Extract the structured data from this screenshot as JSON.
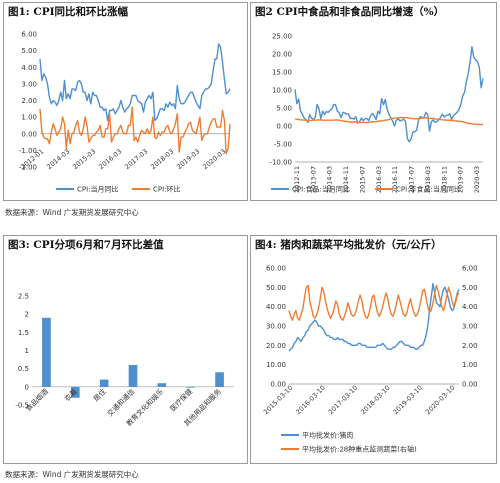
{
  "panels": [
    {
      "title": "图1: CPI同比和环比涨幅"
    },
    {
      "title": "图2 CPI中食品和非食品同比增速（%）"
    },
    {
      "title": "图3: CPI分项6月和7月环比差值"
    },
    {
      "title": "图4: 猪肉和蔬菜平均批发价（元/公斤）"
    }
  ],
  "sources": [
    "数据来源：Wind  广发期货发展研究中心",
    "数据来源：Wind  广发期货发展研究中心"
  ],
  "colors": {
    "blue": "#4e8fcd",
    "orange": "#ef7d31",
    "gray": "#bfbfbf"
  },
  "chart_data": [
    {
      "type": "line",
      "ylim": [
        -2,
        6
      ],
      "y_ticks": [
        "6.00",
        "5.00",
        "4.00",
        "3.00",
        "2.00",
        "1.00",
        "0.00",
        "-1.00",
        "-2.00"
      ],
      "x_ticks": [
        "2012-01",
        "2014-03",
        "2015-03",
        "2016-03",
        "2017-03",
        "2018-03",
        "2019-03",
        "2020-03"
      ],
      "series": [
        {
          "name": "CPI:当月同比",
          "color": "#4e8fcd",
          "values": [
            4.5,
            3.2,
            3.6,
            3.4,
            3.0,
            2.2,
            1.8,
            2.0,
            1.9,
            1.7,
            2.0,
            2.5,
            2.0,
            3.2,
            2.1,
            2.4,
            2.1,
            2.7,
            2.7,
            2.6,
            3.1,
            3.2,
            3.0,
            2.5,
            2.5,
            2.0,
            2.4,
            1.8,
            2.5,
            2.3,
            2.3,
            2.0,
            1.6,
            1.6,
            1.4,
            1.5,
            0.8,
            1.4,
            1.4,
            1.5,
            1.2,
            1.4,
            1.6,
            2.0,
            1.6,
            1.3,
            1.5,
            1.6,
            1.8,
            2.3,
            2.3,
            2.3,
            2.0,
            1.9,
            1.8,
            1.3,
            1.9,
            2.1,
            2.3,
            2.1,
            2.5,
            0.8,
            0.9,
            1.2,
            1.5,
            1.5,
            1.4,
            1.8,
            1.6,
            1.9,
            1.7,
            1.8,
            1.5,
            2.9,
            2.1,
            1.8,
            1.8,
            1.9,
            2.1,
            2.3,
            2.5,
            2.5,
            2.2,
            1.9,
            1.7,
            1.5,
            2.3,
            2.5,
            2.7,
            2.7,
            2.8,
            3.0,
            3.8,
            4.5,
            4.5,
            5.4,
            5.2,
            4.3,
            3.3,
            2.4,
            2.5,
            2.7
          ]
        },
        {
          "name": "CPI:环比",
          "color": "#ef7d31",
          "values": [
            1.5,
            0.1,
            -0.2,
            -0.3,
            -0.3,
            -0.6,
            0.1,
            0.6,
            0.3,
            -0.1,
            0.1,
            0.3,
            1.0,
            0.6,
            -0.9,
            0.2,
            -0.6,
            0.0,
            0.1,
            0.5,
            0.8,
            0.1,
            -0.1,
            0.3,
            1.0,
            0.5,
            -0.5,
            -0.3,
            -0.1,
            -0.1,
            0.1,
            0.2,
            0.5,
            -0.2,
            -0.2,
            0.3,
            0.3,
            1.2,
            -0.5,
            -0.2,
            0.0,
            0.0,
            0.3,
            0.5,
            0.1,
            0.0,
            0.0,
            0.5,
            0.5,
            1.6,
            -0.4,
            -0.2,
            -0.5,
            -0.1,
            0.2,
            0.1,
            0.0,
            0.3,
            0.0,
            0.2,
            1.0,
            -0.2,
            -0.3,
            0.1,
            -0.1,
            0.1,
            0.1,
            0.4,
            0.5,
            0.1,
            0.0,
            0.3,
            0.6,
            1.2,
            -1.1,
            -0.2,
            -0.2,
            0.1,
            0.3,
            0.6,
            0.7,
            0.2,
            0.1,
            0.0,
            0.5,
            1.0,
            -0.4,
            -0.1,
            0.0,
            0.0,
            0.4,
            0.7,
            0.9,
            0.9,
            0.4,
            0.4,
            0.4,
            1.4,
            0.8,
            -1.2,
            -0.9,
            0.6
          ]
        }
      ]
    },
    {
      "type": "line",
      "ylim": [
        -10,
        25
      ],
      "y_ticks": [
        "25.00",
        "20.00",
        "15.00",
        "10.00",
        "5.00",
        "0.00",
        "-5.00",
        "-10.00"
      ],
      "x_ticks": [
        "2012-11",
        "2013-07",
        "2014-03",
        "2014-11",
        "2015-07",
        "2016-03",
        "2016-11",
        "2017-07",
        "2018-03",
        "2018-11",
        "2019-07",
        "2020-03"
      ],
      "series": [
        {
          "name": "CPI:食品:当月同比",
          "color": "#4e8fcd",
          "values": [
            10.2,
            6.2,
            7.5,
            4.2,
            3.2,
            2.2,
            1.7,
            1.0,
            3.2,
            2.1,
            1.9,
            2.4,
            6.0,
            4.8,
            2.0,
            4.1,
            3.2,
            4.0,
            3.8,
            4.3,
            4.8,
            6.0,
            5.9,
            4.1,
            3.7,
            2.3,
            3.8,
            3.6,
            3.3,
            3.3,
            2.1,
            2.2,
            1.9,
            2.6,
            0.8,
            1.1,
            2.2,
            1.5,
            2.0,
            2.1,
            1.5,
            2.9,
            3.5,
            2.8,
            1.8,
            4.1,
            3.4,
            7.6,
            5.9,
            7.4,
            4.6,
            3.2,
            2.3,
            1.3,
            0.0,
            1.6,
            2.0,
            1.4,
            1.6,
            1.9,
            1.2,
            -3.5,
            -4.4,
            -3.5,
            -1.6,
            -1.6,
            -1.2,
            1.6,
            2.6,
            2.3,
            2.4,
            3.8,
            3.1,
            -1.4,
            1.2,
            1.7,
            1.0,
            1.2,
            1.7,
            2.4,
            3.3,
            2.5,
            2.9,
            3.0,
            3.4,
            1.8,
            2.9,
            3.4,
            3.8,
            4.6,
            6.1,
            8.4,
            9.4,
            12.4,
            14.7,
            17.8,
            22.0,
            19.1,
            18.3,
            17.9,
            16.3,
            10.6,
            13.2
          ]
        },
        {
          "name": "CPI:非食品:当月同比",
          "color": "#ef7d31",
          "values": [
            2.0,
            1.9,
            1.8,
            1.7,
            1.7,
            1.6,
            1.6,
            1.5,
            1.5,
            1.5,
            1.6,
            1.6,
            1.7,
            1.7,
            1.7,
            1.6,
            1.6,
            1.6,
            1.6,
            1.6,
            1.6,
            1.6,
            1.7,
            1.7,
            1.6,
            1.5,
            1.4,
            1.3,
            1.3,
            1.2,
            1.1,
            1.1,
            1.1,
            1.1,
            1.0,
            1.0,
            1.0,
            1.0,
            1.0,
            1.0,
            1.0,
            1.1,
            1.1,
            1.2,
            1.2,
            1.3,
            1.4,
            1.4,
            1.5,
            1.6,
            1.7,
            1.8,
            2.0,
            2.1,
            2.2,
            2.2,
            2.3,
            2.3,
            2.4,
            2.3,
            2.3,
            2.3,
            2.2,
            2.1,
            2.1,
            2.0,
            2.0,
            2.0,
            2.1,
            2.2,
            2.2,
            2.3,
            2.2,
            2.1,
            2.1,
            2.1,
            2.0,
            1.9,
            1.9,
            1.8,
            1.7,
            1.7,
            1.6,
            1.6,
            1.6,
            1.5,
            1.5,
            1.4,
            1.4,
            1.3,
            1.3,
            1.2,
            1.0,
            0.9,
            0.7,
            0.7,
            0.6,
            0.5,
            0.5,
            0.4,
            0.4,
            0.4,
            0.4
          ]
        }
      ]
    },
    {
      "type": "bar",
      "ylim": [
        -0.5,
        2.5
      ],
      "y_ticks": [
        "2.5",
        "2",
        "1.5",
        "1",
        "0.5",
        "0",
        "-0.5"
      ],
      "categories": [
        "食品烟酒",
        "衣着",
        "居住",
        "交通和通信",
        "教育文化和娱乐",
        "医疗保健",
        "其他用品和服务"
      ],
      "values": [
        1.9,
        -0.3,
        0.2,
        0.6,
        0.1,
        0.0,
        0.4
      ],
      "color": "#4e8fcd"
    },
    {
      "type": "line",
      "ylim": [
        0,
        60
      ],
      "y2lim": [
        0,
        6
      ],
      "y_ticks": [
        "60.00",
        "50.00",
        "40.00",
        "30.00",
        "20.00",
        "10.00",
        "0.00"
      ],
      "y2_ticks": [
        "6.00",
        "5.00",
        "4.00",
        "3.00",
        "2.00",
        "1.00",
        "0.00"
      ],
      "x_ticks": [
        "2015-03-10",
        "2016-03-10",
        "2017-03-10",
        "2018-03-10",
        "2019-03-10",
        "2020-03-10"
      ],
      "series": [
        {
          "name": "平均批发价:猪肉",
          "color": "#4e8fcd",
          "axis": "left",
          "values": [
            17,
            18,
            19,
            21,
            22,
            24,
            23,
            22,
            24,
            25,
            27,
            28,
            30,
            31,
            32,
            33,
            32,
            30,
            30,
            29,
            28,
            26,
            25,
            25,
            24,
            24,
            23,
            23,
            24,
            23,
            23,
            23,
            22,
            22,
            21,
            21,
            20,
            20,
            20,
            20,
            21,
            21,
            20,
            20,
            20,
            19,
            19,
            19,
            19,
            19,
            19,
            20,
            20,
            20,
            21,
            20,
            19,
            18,
            18,
            18,
            19,
            19,
            20,
            21,
            22,
            22,
            21,
            20,
            20,
            20,
            19,
            19,
            19,
            18,
            18,
            19,
            20,
            20,
            22,
            25,
            30,
            38,
            45,
            52,
            47,
            42,
            41,
            40,
            45,
            49,
            50,
            47,
            44,
            40,
            38,
            39,
            43,
            47,
            49
          ]
        },
        {
          "name": "平均批发价:28种重点监测蔬菜(右轴)",
          "color": "#ef7d31",
          "axis": "right",
          "values": [
            3.8,
            3.5,
            3.3,
            3.6,
            3.8,
            3.4,
            3.3,
            3.6,
            3.9,
            4.5,
            5.0,
            5.1,
            4.3,
            3.9,
            3.5,
            3.4,
            3.6,
            3.9,
            4.4,
            5.0,
            4.8,
            4.3,
            3.9,
            3.6,
            3.4,
            3.6,
            3.9,
            4.3,
            4.1,
            3.6,
            3.4,
            3.3,
            3.5,
            3.8,
            4.2,
            3.9,
            3.6,
            3.5,
            3.6,
            3.9,
            4.3,
            4.6,
            4.3,
            3.8,
            3.5,
            3.4,
            3.6,
            4.0,
            4.5,
            4.6,
            4.1,
            3.7,
            3.5,
            3.7,
            4.0,
            4.4,
            4.7,
            4.4,
            3.9,
            3.6,
            3.5,
            3.8,
            4.2,
            4.6,
            4.3,
            3.9,
            3.6,
            3.5,
            3.7,
            4.1,
            4.4,
            4.0,
            3.7,
            3.5,
            3.6,
            3.9,
            4.3,
            4.8,
            4.9,
            4.5,
            4.0,
            3.7,
            3.8,
            4.2,
            4.7,
            5.1,
            4.8,
            4.4,
            4.0,
            3.8,
            4.1,
            4.6,
            5.0,
            4.7,
            4.3,
            4.0,
            4.2,
            4.6,
            4.7
          ]
        }
      ]
    }
  ]
}
